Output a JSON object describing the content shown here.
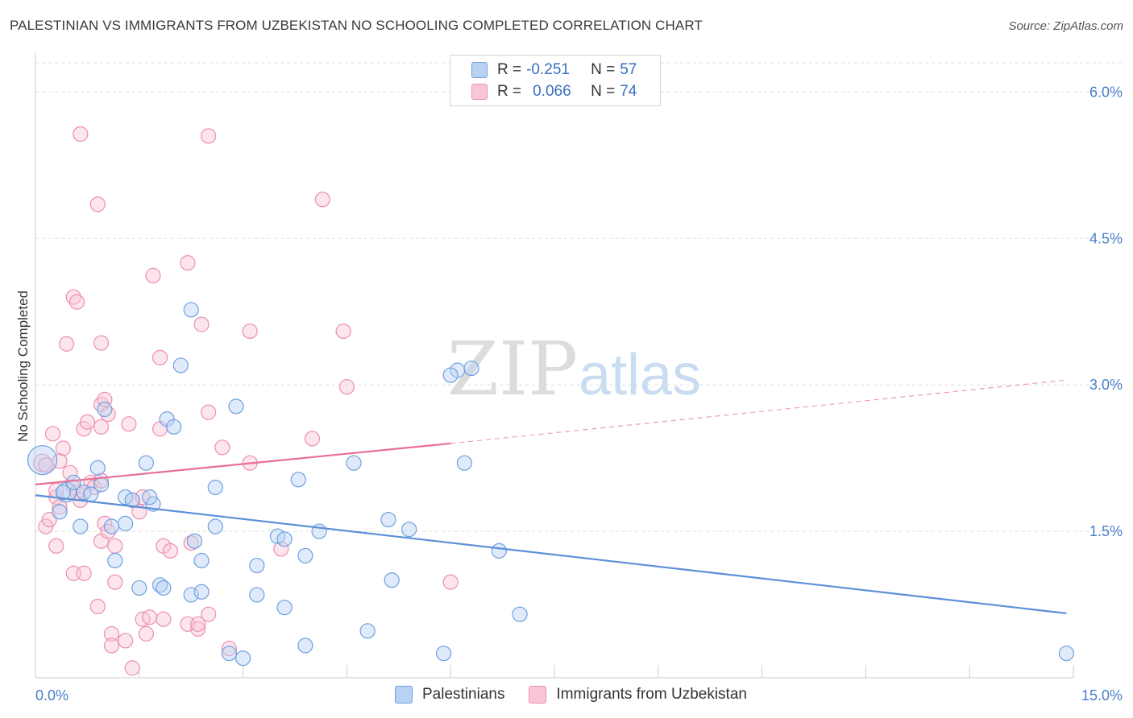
{
  "title": "PALESTINIAN VS IMMIGRANTS FROM UZBEKISTAN NO SCHOOLING COMPLETED CORRELATION CHART",
  "source": "Source: ZipAtlas.com",
  "watermark": {
    "zip": "ZIP",
    "atlas": "atlas"
  },
  "legend": {
    "r_label": "R =",
    "n_label": "N =",
    "series": [
      {
        "name": "Palestinians",
        "r": "-0.251",
        "n": "57",
        "fill": "#b9d2f3",
        "stroke": "#6f9fe0"
      },
      {
        "name": "Immigrants from Uzbekistan",
        "r": "0.066",
        "n": "74",
        "fill": "#f9c6d6",
        "stroke": "#ec8fae"
      }
    ]
  },
  "chart_data": {
    "type": "scatter",
    "title": "PALESTINIAN VS IMMIGRANTS FROM UZBEKISTAN NO SCHOOLING COMPLETED CORRELATION CHART",
    "xlabel": "",
    "ylabel": "No Schooling Completed",
    "xlim": [
      0,
      15
    ],
    "ylim": [
      0,
      6.3
    ],
    "x_tick_labels": [
      "0.0%",
      "15.0%"
    ],
    "y_ticks": [
      1.5,
      3.0,
      4.5,
      6.0
    ],
    "y_tick_labels": [
      "1.5%",
      "3.0%",
      "4.5%",
      "6.0%"
    ],
    "series": [
      {
        "name": "Palestinians",
        "color": "#5b8fd9",
        "trend": {
          "x0": 0,
          "y0": 1.87,
          "x1": 14.9,
          "y1": 0.66,
          "style": "solid"
        },
        "points": [
          [
            0.1,
            2.23,
            18
          ],
          [
            0.45,
            1.9,
            12
          ],
          [
            0.7,
            1.9,
            9
          ],
          [
            0.8,
            1.88,
            9
          ],
          [
            0.4,
            1.9,
            9
          ],
          [
            0.55,
            2.0,
            9
          ],
          [
            0.35,
            1.7,
            9
          ],
          [
            0.95,
            1.98,
            9
          ],
          [
            0.9,
            2.15,
            9
          ],
          [
            1.3,
            1.85,
            9
          ],
          [
            1.4,
            1.82,
            9
          ],
          [
            1.1,
            1.55,
            9
          ],
          [
            0.65,
            1.55,
            9
          ],
          [
            1.0,
            2.75,
            9
          ],
          [
            1.6,
            2.2,
            9
          ],
          [
            1.7,
            1.78,
            9
          ],
          [
            1.9,
            2.65,
            9
          ],
          [
            2.0,
            2.57,
            9
          ],
          [
            2.1,
            3.2,
            9
          ],
          [
            2.25,
            3.77,
            9
          ],
          [
            2.9,
            2.78,
            9
          ],
          [
            2.6,
            1.95,
            9
          ],
          [
            2.6,
            1.55,
            9
          ],
          [
            2.4,
            1.2,
            9
          ],
          [
            2.3,
            1.4,
            9
          ],
          [
            2.25,
            0.85,
            9
          ],
          [
            2.4,
            0.88,
            9
          ],
          [
            1.8,
            0.95,
            9
          ],
          [
            1.85,
            0.92,
            9
          ],
          [
            1.5,
            0.92,
            9
          ],
          [
            1.3,
            1.58,
            9
          ],
          [
            1.65,
            1.85,
            9
          ],
          [
            3.5,
            1.45,
            9
          ],
          [
            3.6,
            1.42,
            9
          ],
          [
            3.9,
            1.25,
            9
          ],
          [
            3.2,
            1.15,
            9
          ],
          [
            3.2,
            0.85,
            9
          ],
          [
            3.6,
            0.72,
            9
          ],
          [
            3.8,
            2.03,
            9
          ],
          [
            4.1,
            1.5,
            9
          ],
          [
            4.6,
            2.2,
            9
          ],
          [
            5.1,
            1.62,
            9
          ],
          [
            5.4,
            1.52,
            9
          ],
          [
            5.15,
            1.0,
            9
          ],
          [
            4.8,
            0.48,
            9
          ],
          [
            6.1,
            3.15,
            9
          ],
          [
            6.0,
            3.1,
            9
          ],
          [
            6.3,
            3.17,
            9
          ],
          [
            6.2,
            2.2,
            9
          ],
          [
            6.7,
            1.3,
            9
          ],
          [
            7.0,
            0.65,
            9
          ],
          [
            5.9,
            0.25,
            9
          ],
          [
            3.9,
            0.33,
            9
          ],
          [
            2.8,
            0.25,
            9
          ],
          [
            3.0,
            0.2,
            9
          ],
          [
            1.15,
            1.2,
            9
          ],
          [
            14.9,
            0.25,
            9
          ]
        ]
      },
      {
        "name": "Immigrants from Uzbekistan",
        "color": "#e86f98",
        "trend": {
          "x0": 0,
          "y0": 1.98,
          "x1": 6.0,
          "y1": 2.4,
          "style": "solid",
          "dash_x1": 14.9,
          "dash_y1": 3.05
        },
        "points": [
          [
            0.1,
            2.2,
            11
          ],
          [
            0.15,
            1.55,
            9
          ],
          [
            0.25,
            2.5,
            9
          ],
          [
            0.3,
            1.85,
            9
          ],
          [
            0.4,
            2.35,
            9
          ],
          [
            0.35,
            2.22,
            9
          ],
          [
            0.55,
            1.95,
            9
          ],
          [
            0.65,
            1.82,
            9
          ],
          [
            0.6,
            1.9,
            9
          ],
          [
            0.45,
            3.42,
            9
          ],
          [
            0.55,
            3.9,
            9
          ],
          [
            0.6,
            3.85,
            9
          ],
          [
            0.65,
            5.57,
            9
          ],
          [
            0.9,
            4.85,
            9
          ],
          [
            0.95,
            3.43,
            9
          ],
          [
            0.95,
            2.8,
            9
          ],
          [
            0.7,
            2.55,
            9
          ],
          [
            0.75,
            2.62,
            9
          ],
          [
            0.95,
            2.57,
            9
          ],
          [
            1.0,
            2.85,
            9
          ],
          [
            1.05,
            2.7,
            9
          ],
          [
            1.35,
            2.6,
            9
          ],
          [
            0.8,
            2.0,
            9
          ],
          [
            0.85,
            1.95,
            9
          ],
          [
            0.95,
            1.4,
            9
          ],
          [
            1.0,
            1.58,
            9
          ],
          [
            1.05,
            1.5,
            9
          ],
          [
            1.4,
            1.82,
            9
          ],
          [
            1.5,
            1.7,
            9
          ],
          [
            1.55,
            1.85,
            9
          ],
          [
            1.7,
            4.12,
            9
          ],
          [
            1.8,
            3.28,
            9
          ],
          [
            1.8,
            2.55,
            9
          ],
          [
            2.2,
            4.25,
            9
          ],
          [
            2.4,
            3.62,
            9
          ],
          [
            2.5,
            2.72,
            9
          ],
          [
            2.7,
            2.36,
            9
          ],
          [
            2.5,
            5.55,
            9
          ],
          [
            3.1,
            2.2,
            9
          ],
          [
            3.1,
            3.55,
            9
          ],
          [
            4.15,
            4.9,
            9
          ],
          [
            4.0,
            2.45,
            9
          ],
          [
            4.45,
            3.55,
            9
          ],
          [
            4.5,
            2.98,
            9
          ],
          [
            3.55,
            1.32,
            9
          ],
          [
            1.85,
            1.35,
            9
          ],
          [
            1.95,
            1.3,
            9
          ],
          [
            2.25,
            1.38,
            9
          ],
          [
            1.15,
            1.35,
            9
          ],
          [
            0.3,
            1.35,
            9
          ],
          [
            0.55,
            1.07,
            9
          ],
          [
            0.7,
            1.07,
            9
          ],
          [
            1.15,
            0.98,
            9
          ],
          [
            0.9,
            0.73,
            9
          ],
          [
            1.1,
            0.45,
            9
          ],
          [
            1.3,
            0.38,
            9
          ],
          [
            1.1,
            0.33,
            9
          ],
          [
            1.55,
            0.6,
            9
          ],
          [
            1.6,
            0.45,
            9
          ],
          [
            1.85,
            0.6,
            9
          ],
          [
            1.65,
            0.62,
            9
          ],
          [
            2.2,
            0.55,
            9
          ],
          [
            2.35,
            0.5,
            9
          ],
          [
            2.35,
            0.55,
            9
          ],
          [
            2.5,
            0.65,
            9
          ],
          [
            2.8,
            0.3,
            9
          ],
          [
            1.4,
            0.1,
            9
          ],
          [
            6.0,
            0.98,
            9
          ],
          [
            0.35,
            1.75,
            9
          ],
          [
            0.2,
            1.62,
            9
          ],
          [
            0.5,
            2.1,
            9
          ],
          [
            0.15,
            2.18,
            9
          ],
          [
            0.3,
            1.92,
            9
          ],
          [
            0.95,
            2.02,
            9
          ]
        ]
      }
    ]
  }
}
